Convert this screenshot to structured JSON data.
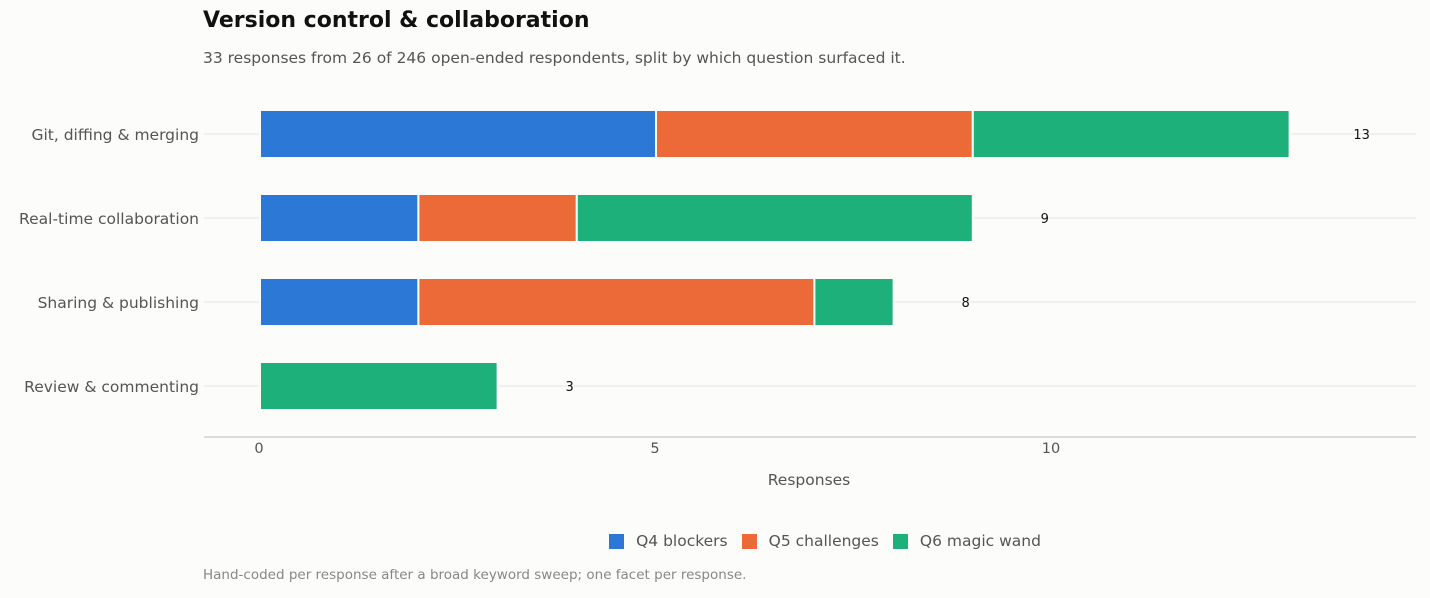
{
  "title": "Version control & collaboration",
  "subtitle": "33 responses from 26 of 246 open-ended respondents, split by which question surfaced it.",
  "footnote": "Hand-coded per response after a broad keyword sweep; one facet per response.",
  "chart_data": {
    "type": "bar",
    "orientation": "horizontal",
    "stacked": true,
    "categories": [
      "Git, diffing & merging",
      "Real-time collaboration",
      "Sharing & publishing",
      "Review & commenting"
    ],
    "series": [
      {
        "name": "Q4 blockers",
        "color": "#2b78d6",
        "values": [
          5,
          2,
          2,
          0
        ]
      },
      {
        "name": "Q5 challenges",
        "color": "#eb6a37",
        "values": [
          4,
          2,
          5,
          0
        ]
      },
      {
        "name": "Q6 magic wand",
        "color": "#1db07b",
        "values": [
          4,
          5,
          1,
          3
        ]
      }
    ],
    "totals": [
      "13",
      "9",
      "8",
      "3"
    ],
    "xlabel": "Responses",
    "ylabel": "",
    "xticks": [
      "0",
      "5",
      "10"
    ],
    "xlim": [
      0,
      14.5
    ],
    "grid": "horizontal",
    "legend": "bottom-center"
  }
}
